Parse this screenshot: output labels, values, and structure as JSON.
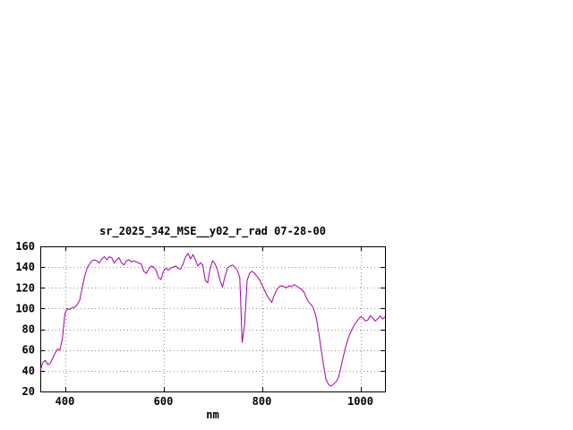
{
  "chart_data": {
    "type": "line",
    "title": "sr_2025_342_MSE__y02_r_rad 07-28-00",
    "xlabel": "nm",
    "ylabel": "",
    "xlim": [
      350,
      1050
    ],
    "ylim": [
      20,
      160
    ],
    "xticks": [
      400,
      600,
      800,
      1000
    ],
    "yticks": [
      20,
      40,
      60,
      80,
      100,
      120,
      140,
      160
    ],
    "grid": true,
    "legend_position": "none",
    "line_color": "#a000a0",
    "axis_color": "#000000",
    "grid_color": "#909090",
    "series": [
      {
        "name": "sr_2025_342_MSE__y02_r_rad",
        "points": [
          [
            350,
            40
          ],
          [
            355,
            48
          ],
          [
            360,
            50
          ],
          [
            365,
            46
          ],
          [
            370,
            47
          ],
          [
            375,
            52
          ],
          [
            380,
            57
          ],
          [
            385,
            61
          ],
          [
            390,
            60
          ],
          [
            395,
            72
          ],
          [
            400,
            95
          ],
          [
            405,
            100
          ],
          [
            410,
            99
          ],
          [
            415,
            101
          ],
          [
            420,
            101
          ],
          [
            425,
            104
          ],
          [
            430,
            108
          ],
          [
            435,
            120
          ],
          [
            440,
            131
          ],
          [
            445,
            139
          ],
          [
            450,
            143
          ],
          [
            455,
            146
          ],
          [
            460,
            147
          ],
          [
            465,
            146
          ],
          [
            470,
            144
          ],
          [
            475,
            148
          ],
          [
            480,
            150
          ],
          [
            485,
            147
          ],
          [
            490,
            150
          ],
          [
            495,
            149
          ],
          [
            500,
            144
          ],
          [
            505,
            147
          ],
          [
            510,
            149
          ],
          [
            515,
            144
          ],
          [
            520,
            142
          ],
          [
            525,
            146
          ],
          [
            530,
            147
          ],
          [
            535,
            145
          ],
          [
            540,
            146
          ],
          [
            545,
            145
          ],
          [
            550,
            144
          ],
          [
            555,
            143
          ],
          [
            560,
            136
          ],
          [
            565,
            134
          ],
          [
            570,
            138
          ],
          [
            575,
            141
          ],
          [
            580,
            140
          ],
          [
            585,
            137
          ],
          [
            590,
            130
          ],
          [
            595,
            128
          ],
          [
            600,
            136
          ],
          [
            605,
            139
          ],
          [
            610,
            137
          ],
          [
            615,
            139
          ],
          [
            620,
            140
          ],
          [
            625,
            141
          ],
          [
            630,
            139
          ],
          [
            635,
            138
          ],
          [
            640,
            143
          ],
          [
            645,
            150
          ],
          [
            650,
            153
          ],
          [
            655,
            148
          ],
          [
            660,
            152
          ],
          [
            665,
            147
          ],
          [
            670,
            141
          ],
          [
            675,
            144
          ],
          [
            680,
            142
          ],
          [
            685,
            127
          ],
          [
            690,
            125
          ],
          [
            695,
            139
          ],
          [
            700,
            146
          ],
          [
            705,
            143
          ],
          [
            710,
            137
          ],
          [
            715,
            127
          ],
          [
            720,
            121
          ],
          [
            725,
            131
          ],
          [
            730,
            139
          ],
          [
            735,
            141
          ],
          [
            740,
            142
          ],
          [
            745,
            140
          ],
          [
            750,
            137
          ],
          [
            755,
            130
          ],
          [
            760,
            67
          ],
          [
            765,
            85
          ],
          [
            770,
            127
          ],
          [
            775,
            134
          ],
          [
            780,
            136
          ],
          [
            785,
            134
          ],
          [
            790,
            131
          ],
          [
            795,
            128
          ],
          [
            800,
            123
          ],
          [
            805,
            118
          ],
          [
            810,
            113
          ],
          [
            815,
            109
          ],
          [
            820,
            106
          ],
          [
            825,
            113
          ],
          [
            830,
            118
          ],
          [
            835,
            121
          ],
          [
            840,
            122
          ],
          [
            845,
            121
          ],
          [
            850,
            120
          ],
          [
            855,
            122
          ],
          [
            860,
            121
          ],
          [
            865,
            123
          ],
          [
            870,
            122
          ],
          [
            875,
            120
          ],
          [
            880,
            119
          ],
          [
            885,
            116
          ],
          [
            890,
            111
          ],
          [
            895,
            106
          ],
          [
            900,
            104
          ],
          [
            905,
            100
          ],
          [
            910,
            92
          ],
          [
            915,
            78
          ],
          [
            920,
            62
          ],
          [
            925,
            46
          ],
          [
            930,
            32
          ],
          [
            935,
            27
          ],
          [
            940,
            25
          ],
          [
            945,
            27
          ],
          [
            950,
            29
          ],
          [
            955,
            33
          ],
          [
            960,
            42
          ],
          [
            965,
            53
          ],
          [
            970,
            63
          ],
          [
            975,
            71
          ],
          [
            980,
            77
          ],
          [
            985,
            82
          ],
          [
            990,
            86
          ],
          [
            995,
            89
          ],
          [
            1000,
            92
          ],
          [
            1005,
            91
          ],
          [
            1010,
            88
          ],
          [
            1015,
            89
          ],
          [
            1020,
            93
          ],
          [
            1025,
            91
          ],
          [
            1030,
            88
          ],
          [
            1035,
            90
          ],
          [
            1040,
            93
          ],
          [
            1045,
            90
          ],
          [
            1050,
            92
          ]
        ]
      }
    ]
  }
}
